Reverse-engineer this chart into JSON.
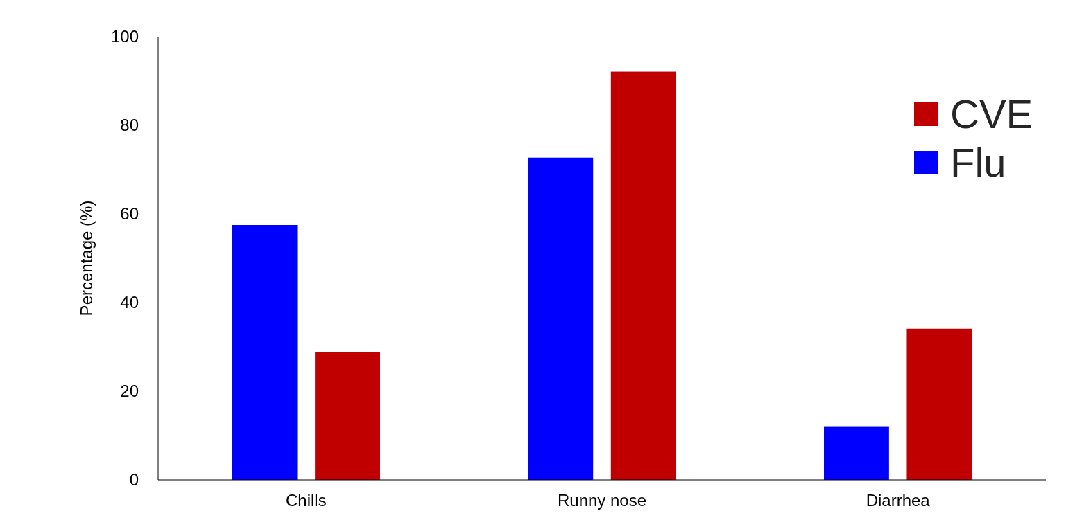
{
  "chart_data": {
    "type": "bar",
    "ylabel": "Percentage (%)",
    "categories": [
      "Chills",
      "Runny nose",
      "Diarrhea"
    ],
    "series": [
      {
        "name": "Flu",
        "color": "#0000ff",
        "values": [
          57.5,
          72.7,
          12.1
        ]
      },
      {
        "name": "CVE",
        "color": "#c00000",
        "values": [
          28.8,
          92.1,
          34.1
        ]
      }
    ],
    "ylim": [
      0,
      100
    ],
    "yticks": [
      0,
      20,
      40,
      60,
      80,
      100
    ],
    "grid": false,
    "legend": "top right"
  }
}
